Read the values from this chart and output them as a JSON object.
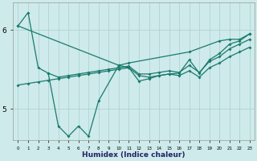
{
  "color": "#1a7a6e",
  "bg_color": "#ceeaea",
  "grid_color": "#aacfcf",
  "xlabel_text": "Humidex (Indice chaleur)",
  "ylim": [
    4.6,
    6.35
  ],
  "yticks": [
    5,
    6
  ],
  "xlim": [
    -0.5,
    23.5
  ],
  "line_main_x": [
    0,
    1,
    2,
    3,
    4,
    5,
    6,
    7,
    8,
    10,
    11,
    12,
    13,
    14,
    15,
    16,
    17,
    18,
    19,
    20,
    21,
    22,
    23
  ],
  "line_main_y": [
    6.05,
    6.22,
    5.52,
    5.45,
    4.78,
    4.65,
    4.78,
    4.65,
    5.1,
    5.55,
    5.52,
    5.35,
    5.38,
    5.42,
    5.44,
    5.45,
    5.62,
    5.45,
    5.62,
    5.7,
    5.82,
    5.86,
    5.95
  ],
  "line_upper_x": [
    0,
    10,
    11,
    17,
    20,
    21,
    22,
    23
  ],
  "line_upper_y": [
    6.05,
    5.55,
    5.58,
    5.72,
    5.86,
    5.88,
    5.88,
    5.95
  ],
  "line_mid_x": [
    3,
    4,
    5,
    6,
    7,
    8,
    9,
    10,
    11,
    12,
    13,
    14,
    15,
    16,
    17,
    18,
    19,
    20,
    21,
    22,
    23
  ],
  "line_mid_y": [
    5.45,
    5.4,
    5.42,
    5.44,
    5.46,
    5.48,
    5.5,
    5.52,
    5.54,
    5.44,
    5.44,
    5.46,
    5.48,
    5.46,
    5.55,
    5.46,
    5.6,
    5.66,
    5.76,
    5.82,
    5.88
  ],
  "line_lower_x": [
    0,
    1,
    2,
    3,
    4,
    5,
    6,
    7,
    8,
    9,
    10,
    11,
    12,
    13,
    14,
    15,
    16,
    17,
    18,
    19,
    20,
    21,
    22,
    23
  ],
  "line_lower_y": [
    5.3,
    5.32,
    5.34,
    5.36,
    5.38,
    5.4,
    5.42,
    5.44,
    5.46,
    5.48,
    5.5,
    5.52,
    5.42,
    5.4,
    5.42,
    5.44,
    5.42,
    5.48,
    5.4,
    5.52,
    5.58,
    5.66,
    5.72,
    5.78
  ],
  "lw": 0.9,
  "ms": 2.0
}
